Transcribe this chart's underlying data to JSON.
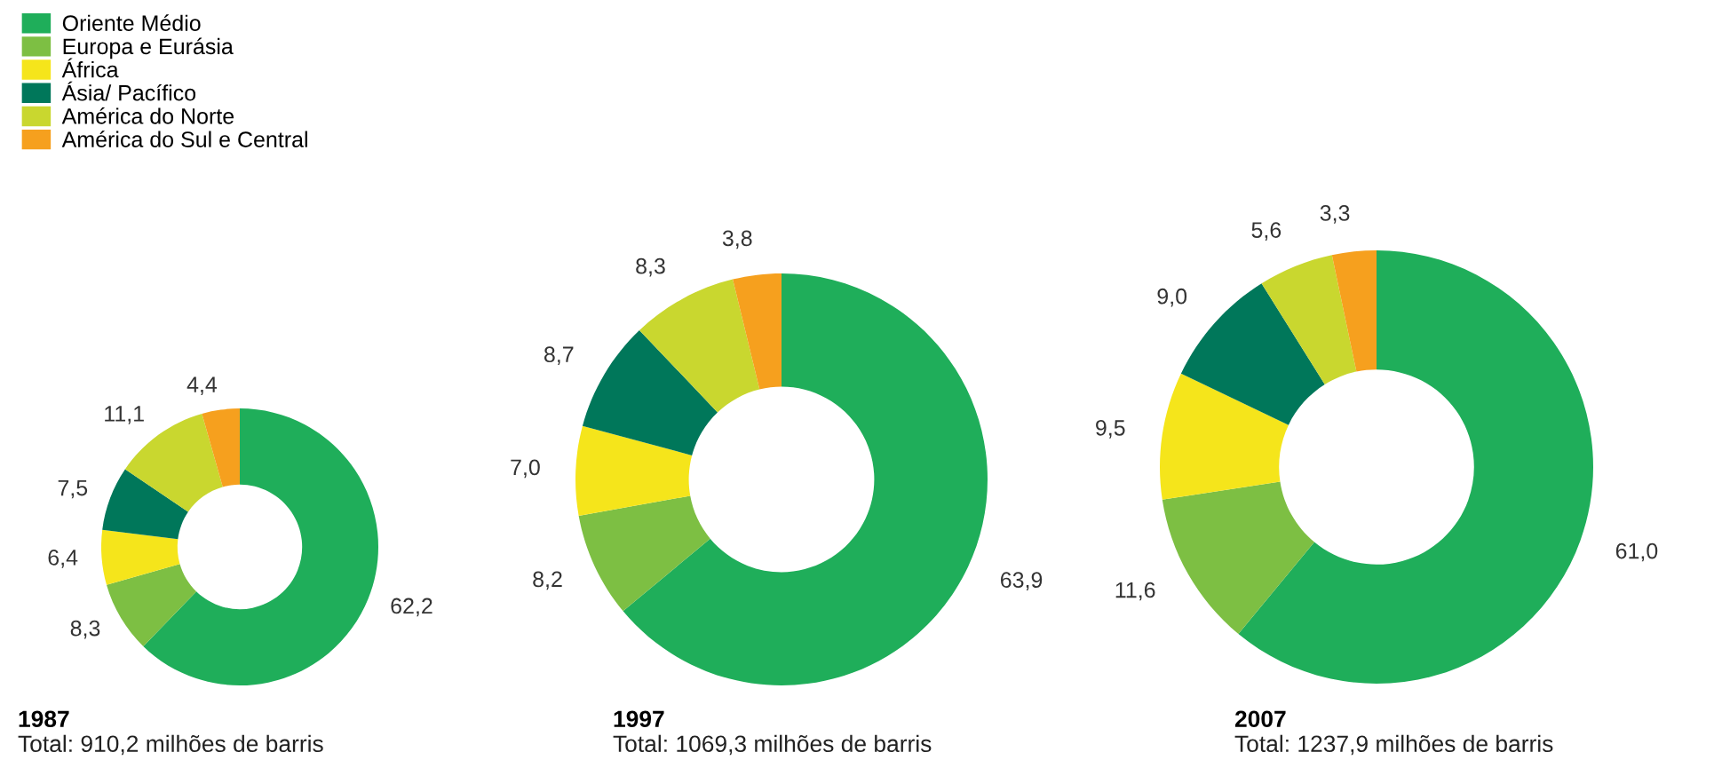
{
  "chart_data": [
    {
      "type": "donut",
      "title": "1987",
      "annotations": [
        "Total: 910,2 milhões de barris"
      ],
      "legend": "top left",
      "categories": [
        "Oriente Médio",
        "Europa e Eurásia",
        "África",
        "Ásia/ Pacífico",
        "América do Norte",
        "América do Sul e Central"
      ],
      "colors": [
        "#1fae5a",
        "#7dbf43",
        "#f5e51b",
        "#00775a",
        "#c9d72f",
        "#f6a01e"
      ],
      "values": [
        62.2,
        8.3,
        6.4,
        7.5,
        11.1,
        4.4
      ],
      "value_labels": [
        "62,2",
        "8,3",
        "6,4",
        "7,5",
        "11,1",
        "4,4"
      ]
    },
    {
      "type": "donut",
      "title": "1997",
      "annotations": [
        "Total: 1069,3 milhões de barris"
      ],
      "categories": [
        null,
        null,
        null,
        null,
        null,
        null
      ],
      "colors": [
        "#1fae5a",
        "#7dbf43",
        "#f5e51b",
        "#00775a",
        "#c9d72f",
        "#f6a01e"
      ],
      "values": [
        63.9,
        8.2,
        7.0,
        8.7,
        8.3,
        3.8
      ],
      "value_labels": [
        "63,9",
        "8,2",
        "7,0",
        "8,7",
        "8,3",
        "3,8"
      ]
    },
    {
      "type": "donut",
      "title": "2007",
      "annotations": [
        "Total: 1237,9 milhões de barris"
      ],
      "categories": [
        null,
        null,
        null,
        null,
        null,
        null
      ],
      "colors": [
        "#1fae5a",
        "#7dbf43",
        "#f5e51b",
        "#00775a",
        "#c9d72f",
        "#f6a01e"
      ],
      "values": [
        61.0,
        11.6,
        9.5,
        9.0,
        5.6,
        3.3
      ],
      "value_labels": [
        "61,0",
        "11,6",
        "9,5",
        "9,0",
        "5,6",
        "3,3"
      ]
    }
  ]
}
